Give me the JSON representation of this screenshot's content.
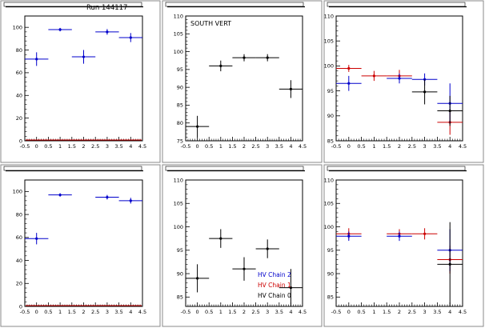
{
  "run_label": "Run 144117",
  "colors": {
    "chain0": "#000000",
    "chain1": "#cc0000",
    "chain2": "#0000cc",
    "frame": "#000000",
    "panel_bg": "#ffffff",
    "zero_line": "#cc0000"
  },
  "chart_data": [
    {
      "type": "scatter",
      "title": "",
      "xlim": [
        -0.5,
        4.5
      ],
      "ylim": [
        0,
        110
      ],
      "x_ticks": [
        "-0.5",
        "0",
        "0.5",
        "1",
        "1.5",
        "2",
        "2.5",
        "3",
        "3.5",
        "4",
        "4.5"
      ],
      "y_ticks": [
        "0",
        "20",
        "40",
        "60",
        "80",
        "100"
      ],
      "series": [
        {
          "name": "",
          "color": "#0000cc",
          "x": [
            0,
            1,
            2,
            3,
            4
          ],
          "y": [
            72,
            98,
            74,
            96,
            91
          ],
          "xerr": [
            0.5,
            0.5,
            0.5,
            0.5,
            0.5
          ],
          "yerr": [
            6,
            1.5,
            6,
            2.5,
            4
          ]
        }
      ],
      "zero_line": true
    },
    {
      "type": "scatter",
      "title": "",
      "annotation": "SOUTH VERT",
      "xlim": [
        -0.5,
        4.5
      ],
      "ylim": [
        75,
        110
      ],
      "x_ticks": [
        "-0.5",
        "0",
        "0.5",
        "1",
        "1.5",
        "2",
        "2.5",
        "3",
        "3.5",
        "4",
        "4.5"
      ],
      "y_ticks": [
        "75",
        "80",
        "85",
        "90",
        "95",
        "100",
        "105",
        "110"
      ],
      "series": [
        {
          "name": "",
          "color": "#000000",
          "x": [
            0,
            1,
            2,
            3,
            4
          ],
          "y": [
            79,
            96,
            98.3,
            98.3,
            89.5
          ],
          "xerr": [
            0.5,
            0.5,
            0.5,
            0.5,
            0.5
          ],
          "yerr": [
            3,
            1.5,
            1,
            1,
            2.5
          ]
        }
      ]
    },
    {
      "type": "scatter",
      "title": "",
      "xlim": [
        -0.5,
        4.5
      ],
      "ylim": [
        85,
        110
      ],
      "x_ticks": [
        "-0.5",
        "0",
        "0.5",
        "1",
        "1.5",
        "2",
        "2.5",
        "3",
        "3.5",
        "4",
        "4.5"
      ],
      "y_ticks": [
        "85",
        "90",
        "95",
        "100",
        "105",
        "110"
      ],
      "series": [
        {
          "name": "",
          "color": "#cc0000",
          "x": [
            0,
            1,
            2,
            4
          ],
          "y": [
            99.5,
            98,
            98,
            88.7
          ],
          "xerr": [
            0.5,
            0.5,
            0.5,
            0.5
          ],
          "yerr": [
            0.7,
            1,
            1.2,
            2.5
          ]
        },
        {
          "name": "",
          "color": "#0000cc",
          "x": [
            0,
            2,
            3,
            4
          ],
          "y": [
            96.5,
            97.5,
            97.3,
            92.5
          ],
          "xerr": [
            0.5,
            0.5,
            0.5,
            0.5
          ],
          "yerr": [
            1.5,
            1,
            1.2,
            4
          ]
        },
        {
          "name": "",
          "color": "#000000",
          "x": [
            3,
            4
          ],
          "y": [
            94.8,
            91
          ],
          "xerr": [
            0.5,
            0.5
          ],
          "yerr": [
            2.5,
            3
          ]
        }
      ]
    },
    {
      "type": "scatter",
      "title": "",
      "xlim": [
        -0.5,
        4.5
      ],
      "ylim": [
        0,
        110
      ],
      "x_ticks": [
        "-0.5",
        "0",
        "0.5",
        "1",
        "1.5",
        "2",
        "2.5",
        "3",
        "3.5",
        "4",
        "4.5"
      ],
      "y_ticks": [
        "0",
        "20",
        "40",
        "60",
        "80",
        "100"
      ],
      "series": [
        {
          "name": "",
          "color": "#0000cc",
          "x": [
            0,
            1,
            3,
            4
          ],
          "y": [
            59,
            97,
            95,
            92
          ],
          "xerr": [
            0.5,
            0.5,
            0.5,
            0.5
          ],
          "yerr": [
            5,
            1.5,
            2,
            2.5
          ]
        }
      ],
      "zero_line": true
    },
    {
      "type": "scatter",
      "title": "",
      "xlim": [
        -0.5,
        4.5
      ],
      "ylim": [
        83,
        110
      ],
      "x_ticks": [
        "-0.5",
        "0",
        "0.5",
        "1",
        "1.5",
        "2",
        "2.5",
        "3",
        "3.5",
        "4",
        "4.5"
      ],
      "y_ticks": [
        "85",
        "90",
        "95",
        "100",
        "105",
        "110"
      ],
      "series": [
        {
          "name": "",
          "color": "#000000",
          "x": [
            0,
            1,
            2,
            3,
            4
          ],
          "y": [
            89,
            97.5,
            91,
            95.3,
            87
          ],
          "xerr": [
            0.5,
            0.5,
            0.5,
            0.5,
            0.5
          ],
          "yerr": [
            3,
            2,
            2.5,
            2,
            4
          ]
        }
      ],
      "legend": [
        {
          "label": "HV Chain 2",
          "color": "#0000cc"
        },
        {
          "label": "HV Chain 1",
          "color": "#cc0000"
        },
        {
          "label": "HV Chain 0",
          "color": "#000000"
        }
      ]
    },
    {
      "type": "scatter",
      "title": "",
      "xlim": [
        -0.5,
        4.5
      ],
      "ylim": [
        83,
        110
      ],
      "x_ticks": [
        "-0.5",
        "0",
        "0.5",
        "1",
        "1.5",
        "2",
        "2.5",
        "3",
        "3.5",
        "4",
        "4.5"
      ],
      "y_ticks": [
        "85",
        "90",
        "95",
        "100",
        "105",
        "110"
      ],
      "series": [
        {
          "name": "",
          "color": "#cc0000",
          "x": [
            0,
            2,
            3,
            4
          ],
          "y": [
            98.5,
            98.5,
            98.5,
            93
          ],
          "xerr": [
            0.5,
            0.5,
            0.5,
            0.5
          ],
          "yerr": [
            1.2,
            1,
            1.2,
            3
          ]
        },
        {
          "name": "",
          "color": "#0000cc",
          "x": [
            0,
            2,
            4
          ],
          "y": [
            98,
            98,
            95
          ],
          "xerr": [
            0.5,
            0.5,
            0.5
          ],
          "yerr": [
            1,
            1,
            4.5
          ]
        },
        {
          "name": "",
          "color": "#000000",
          "x": [
            4
          ],
          "y": [
            92
          ],
          "xerr": [
            0.5
          ],
          "yerr": [
            9
          ]
        }
      ]
    }
  ]
}
